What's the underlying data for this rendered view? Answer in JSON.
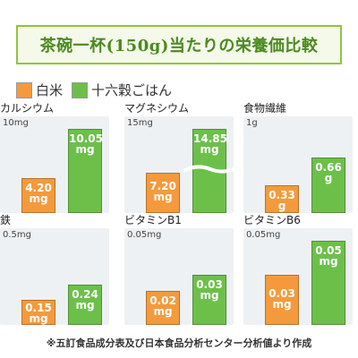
{
  "title": "茶碗一杯(150g)当たりの栄養価比較",
  "legend": [
    {
      "name": "白米",
      "color": "#f49a3c"
    },
    {
      "name": "十六穀ごはん",
      "color": "#6cc04a"
    }
  ],
  "colors": {
    "white_rice": "#f49a3c",
    "grain_rice": "#6cc04a",
    "panel_bg": "#eef1f4",
    "title_green": "#4a8a1e"
  },
  "footnote": "※五訂食品成分表及び日本食品分析センター分析値より作成",
  "chart_data": [
    {
      "type": "bar",
      "title": "カルシウム",
      "ymax_label": "10mg",
      "ylim": [
        0,
        10
      ],
      "unit": "mg",
      "series": [
        {
          "name": "白米",
          "value": 4.2,
          "label": "4.20 mg"
        },
        {
          "name": "十六穀ごはん",
          "value": 10.05,
          "label": "10.05 mg"
        }
      ]
    },
    {
      "type": "bar",
      "title": "マグネシウム",
      "ymax_label": "15mg",
      "ylim": [
        0,
        15
      ],
      "unit": "mg",
      "broken_axis": true,
      "series": [
        {
          "name": "白米",
          "value": 7.2,
          "label": "7.20 mg"
        },
        {
          "name": "十六穀ごはん",
          "value": 14.85,
          "label": "14.85 mg"
        }
      ]
    },
    {
      "type": "bar",
      "title": "食物繊維",
      "ymax_label": "1g",
      "ylim": [
        0,
        1
      ],
      "unit": "g",
      "series": [
        {
          "name": "白米",
          "value": 0.33,
          "label": "0.33 g"
        },
        {
          "name": "十六穀ごはん",
          "value": 0.66,
          "label": "0.66 g"
        }
      ]
    },
    {
      "type": "bar",
      "title": "鉄",
      "ymax_label": "0.5mg",
      "ylim": [
        0,
        0.5
      ],
      "unit": "mg",
      "series": [
        {
          "name": "白米",
          "value": 0.15,
          "label": "0.15 mg"
        },
        {
          "name": "十六穀ごはん",
          "value": 0.24,
          "label": "0.24 mg"
        }
      ]
    },
    {
      "type": "bar",
      "title": "ビタミンB1",
      "ymax_label": "0.05mg",
      "ylim": [
        0,
        0.05
      ],
      "unit": "mg",
      "series": [
        {
          "name": "白米",
          "value": 0.02,
          "label": "0.02 mg"
        },
        {
          "name": "十六穀ごはん",
          "value": 0.03,
          "label": "0.03 mg"
        }
      ]
    },
    {
      "type": "bar",
      "title": "ビタミンB6",
      "ymax_label": "0.05mg",
      "ylim": [
        0,
        0.05
      ],
      "unit": "mg",
      "series": [
        {
          "name": "白米",
          "value": 0.03,
          "label": "0.03 mg"
        },
        {
          "name": "十六穀ごはん",
          "value": 0.05,
          "label": "0.05 mg"
        }
      ]
    }
  ]
}
